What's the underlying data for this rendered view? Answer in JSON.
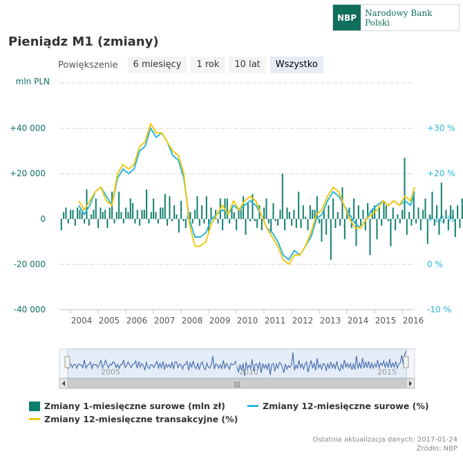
{
  "logo": {
    "mark": "NBP",
    "name": "Narodowy Bank Polski"
  },
  "title": "Pieniądz M1 (zmiany)",
  "zoom": {
    "label": "Powiększenie",
    "buttons": [
      "6 miesięcy",
      "1 rok",
      "10 lat",
      "Wszystko"
    ],
    "active": "Wszystko"
  },
  "colors": {
    "bars": "#0f7d6e",
    "yoy_raw": "#29b6d6",
    "yoy_trans": "#f2c811",
    "navigator": "#4a6fb0"
  },
  "legend": [
    "Zmiany 1-miesięczne surowe (mln zł)",
    "Zmiany 12-miesięczne surowe (%)",
    "Zmiany 12-miesięczne transakcyjne (%)"
  ],
  "footer": {
    "updated": "Ostatnia aktualizacja danych: 2017-01-24",
    "source": "Źródło: NBP"
  },
  "chart_data": {
    "type": "bar",
    "left_axis": {
      "label": "mln PLN",
      "ticks": [
        "-40 000",
        "-20 000",
        "0",
        "+20 000",
        "+40 000"
      ],
      "range": [
        -40000,
        60000
      ]
    },
    "right_axis": {
      "ticks": [
        "-10 %",
        "0 %",
        "+10 %",
        "+20 %",
        "+30 %"
      ],
      "range": [
        -10,
        40
      ]
    },
    "x_ticks": [
      "2004",
      "2005",
      "2006",
      "2007",
      "2008",
      "2009",
      "2010",
      "2011",
      "2012",
      "2013",
      "2014",
      "2015",
      "2016"
    ],
    "navigator_ticks": [
      "2005",
      "2010",
      "2015"
    ],
    "x_range": [
      2003.6,
      2016.45
    ],
    "bars_x_start": 2003.67,
    "bars_step_months": 1,
    "monthly_change_mln": [
      -5000,
      3000,
      5000,
      -2000,
      4000,
      4000,
      -3000,
      5000,
      4000,
      3000,
      -2000,
      13000,
      -3000,
      2000,
      4000,
      9000,
      -4000,
      5000,
      3000,
      4000,
      -4000,
      5000,
      12000,
      -2000,
      3000,
      12000,
      3000,
      -2000,
      5000,
      3000,
      9000,
      7000,
      -2000,
      4000,
      -3000,
      4000,
      4000,
      13000,
      -2000,
      3000,
      9000,
      3000,
      -2000,
      5000,
      5000,
      11000,
      -3000,
      10000,
      -1000,
      6000,
      2000,
      -6000,
      8000,
      -1000,
      -4000,
      4000,
      3000,
      -2000,
      4000,
      10000,
      -3000,
      6000,
      -2000,
      10000,
      -6000,
      5000,
      -1000,
      4000,
      -2000,
      9000,
      -5000,
      9000,
      9000,
      -2000,
      5000,
      3000,
      -5000,
      4000,
      4000,
      10000,
      -7000,
      7000,
      -1000,
      11000,
      -1000,
      -4000,
      6000,
      -5000,
      5000,
      9000,
      -2000,
      -6000,
      7000,
      -1000,
      -3000,
      4000,
      20000,
      -5000,
      5000,
      3000,
      -3000,
      4000,
      -4000,
      12000,
      -4000,
      6000,
      1000,
      -5000,
      6000,
      4000,
      4000,
      10000,
      -2000,
      -10000,
      4000,
      -7000,
      6000,
      -18000,
      9000,
      -4000,
      3000,
      -3000,
      14000,
      -9000,
      4000,
      5000,
      -4000,
      9000,
      -12000,
      6000,
      -3000,
      4000,
      -5000,
      7000,
      -16000,
      4000,
      6000,
      -9000,
      5000,
      -3000,
      8000,
      6000,
      -1000,
      -12000,
      5000,
      -5000,
      2000,
      -2000,
      4000,
      27000,
      -7000,
      3000,
      -3000,
      12000,
      -2000,
      5000,
      -5000,
      4000,
      9000,
      -11000,
      2000,
      12000,
      -3000,
      6000,
      -7000,
      16000,
      -2000,
      4000,
      -5000,
      6000,
      4000,
      -8000,
      6000,
      -4000,
      9000,
      -2000,
      5000,
      -4000,
      10000,
      -4000,
      -8000,
      4000,
      -4000,
      13000,
      -1000,
      6000,
      -2000,
      6000,
      -6000,
      5000,
      -6000,
      21000,
      -4000,
      7000,
      -4000,
      17000,
      -3000,
      9000,
      -2000,
      10000,
      -4000,
      7000,
      -3000,
      8000,
      -2000,
      13000,
      -2000,
      7000,
      2000,
      11000,
      -1000,
      8000,
      -2000,
      15000,
      -2000,
      7000,
      -1000,
      10000,
      -3000,
      5000,
      7000,
      22000,
      4000,
      25000,
      30000
    ],
    "yoy_raw_pct": [
      [
        2004.3,
        13
      ],
      [
        2004.5,
        11
      ],
      [
        2004.7,
        13
      ],
      [
        2004.9,
        16
      ],
      [
        2005.1,
        17
      ],
      [
        2005.3,
        15
      ],
      [
        2005.5,
        13
      ],
      [
        2005.7,
        19
      ],
      [
        2005.9,
        21
      ],
      [
        2006.1,
        20
      ],
      [
        2006.3,
        21
      ],
      [
        2006.5,
        25
      ],
      [
        2006.7,
        26
      ],
      [
        2006.9,
        30
      ],
      [
        2007.1,
        28
      ],
      [
        2007.3,
        29
      ],
      [
        2007.5,
        27
      ],
      [
        2007.7,
        24
      ],
      [
        2007.9,
        23
      ],
      [
        2008.1,
        19
      ],
      [
        2008.3,
        10
      ],
      [
        2008.5,
        6
      ],
      [
        2008.7,
        6
      ],
      [
        2008.9,
        7
      ],
      [
        2009.1,
        10
      ],
      [
        2009.3,
        11
      ],
      [
        2009.5,
        12
      ],
      [
        2009.7,
        11
      ],
      [
        2009.9,
        13
      ],
      [
        2010.1,
        12
      ],
      [
        2010.3,
        13
      ],
      [
        2010.5,
        14
      ],
      [
        2010.7,
        13
      ],
      [
        2010.9,
        11
      ],
      [
        2011.1,
        8
      ],
      [
        2011.3,
        7
      ],
      [
        2011.5,
        5
      ],
      [
        2011.7,
        2
      ],
      [
        2011.9,
        1
      ],
      [
        2012.1,
        3
      ],
      [
        2012.3,
        2
      ],
      [
        2012.5,
        4
      ],
      [
        2012.7,
        6
      ],
      [
        2012.9,
        10
      ],
      [
        2013.1,
        11
      ],
      [
        2013.3,
        14
      ],
      [
        2013.5,
        16
      ],
      [
        2013.7,
        15
      ],
      [
        2013.9,
        13
      ],
      [
        2014.1,
        11
      ],
      [
        2014.3,
        9
      ],
      [
        2014.5,
        8
      ],
      [
        2014.7,
        10
      ],
      [
        2014.9,
        12
      ],
      [
        2015.1,
        13
      ],
      [
        2015.3,
        14
      ],
      [
        2015.5,
        13
      ],
      [
        2015.7,
        14
      ],
      [
        2015.9,
        13
      ],
      [
        2016.1,
        14
      ],
      [
        2016.3,
        13
      ],
      [
        2016.45,
        16
      ]
    ],
    "yoy_trans_pct": [
      [
        2004.3,
        14
      ],
      [
        2004.5,
        12
      ],
      [
        2004.7,
        14
      ],
      [
        2004.9,
        16
      ],
      [
        2005.1,
        17
      ],
      [
        2005.3,
        14
      ],
      [
        2005.5,
        13
      ],
      [
        2005.7,
        20
      ],
      [
        2005.9,
        22
      ],
      [
        2006.1,
        21
      ],
      [
        2006.3,
        22
      ],
      [
        2006.5,
        26
      ],
      [
        2006.7,
        27
      ],
      [
        2006.9,
        31
      ],
      [
        2007.1,
        29
      ],
      [
        2007.3,
        29
      ],
      [
        2007.5,
        27
      ],
      [
        2007.7,
        25
      ],
      [
        2007.9,
        24
      ],
      [
        2008.1,
        20
      ],
      [
        2008.3,
        9
      ],
      [
        2008.5,
        4
      ],
      [
        2008.7,
        4
      ],
      [
        2008.9,
        5
      ],
      [
        2009.1,
        9
      ],
      [
        2009.3,
        11
      ],
      [
        2009.5,
        13
      ],
      [
        2009.7,
        11
      ],
      [
        2009.9,
        14
      ],
      [
        2010.1,
        12
      ],
      [
        2010.3,
        14
      ],
      [
        2010.5,
        15
      ],
      [
        2010.7,
        14
      ],
      [
        2010.9,
        11
      ],
      [
        2011.1,
        8
      ],
      [
        2011.3,
        6
      ],
      [
        2011.5,
        4
      ],
      [
        2011.7,
        1
      ],
      [
        2011.9,
        0
      ],
      [
        2012.1,
        2
      ],
      [
        2012.3,
        2
      ],
      [
        2012.5,
        4
      ],
      [
        2012.7,
        7
      ],
      [
        2012.9,
        11
      ],
      [
        2013.1,
        12
      ],
      [
        2013.3,
        15
      ],
      [
        2013.5,
        17
      ],
      [
        2013.7,
        16
      ],
      [
        2013.9,
        13
      ],
      [
        2014.1,
        10
      ],
      [
        2014.3,
        8
      ],
      [
        2014.5,
        8
      ],
      [
        2014.7,
        10
      ],
      [
        2014.9,
        11
      ],
      [
        2015.1,
        12
      ],
      [
        2015.3,
        14
      ],
      [
        2015.5,
        13
      ],
      [
        2015.7,
        14
      ],
      [
        2015.9,
        13
      ],
      [
        2016.1,
        15
      ],
      [
        2016.3,
        14
      ],
      [
        2016.45,
        17
      ]
    ]
  }
}
